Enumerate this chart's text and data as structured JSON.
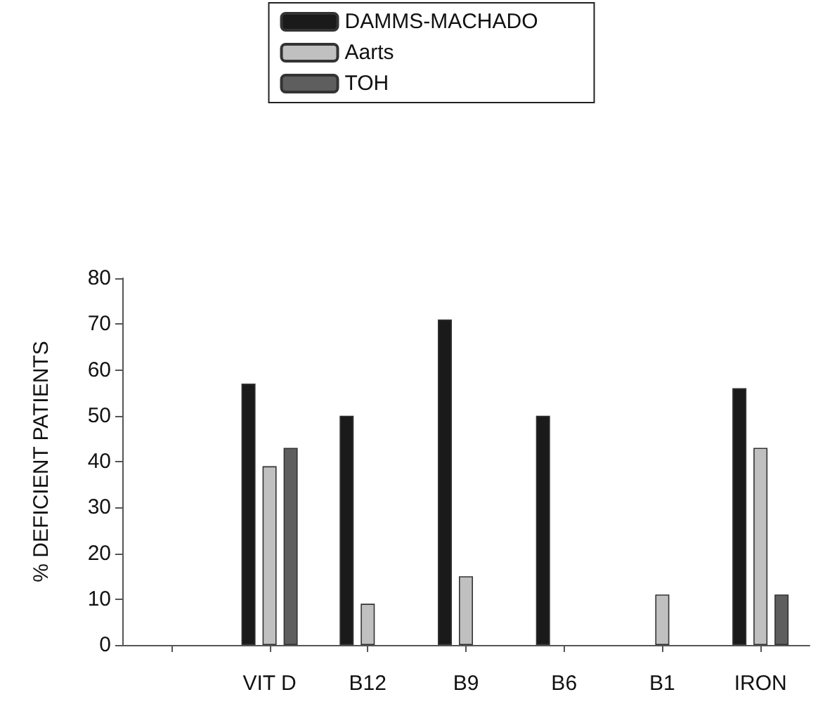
{
  "chart_data": {
    "type": "bar",
    "ylabel": "% DEFICIENT PATIENTS",
    "categories": [
      null,
      "VIT D",
      "B12",
      "B9",
      "B6",
      "B1",
      "IRON"
    ],
    "series": [
      {
        "name": "DAMMS-MACHADO",
        "color": "#1a1a1a",
        "values": [
          null,
          57,
          50,
          71,
          50,
          null,
          56
        ]
      },
      {
        "name": "Aarts",
        "color": "#c0c0c0",
        "values": [
          null,
          39,
          9,
          15,
          null,
          11,
          43
        ]
      },
      {
        "name": "TOH",
        "color": "#5e5e5e",
        "values": [
          null,
          43,
          null,
          null,
          null,
          null,
          11
        ]
      }
    ],
    "ylim": [
      0,
      80
    ],
    "yticks": [
      0,
      10,
      20,
      30,
      40,
      50,
      60,
      70,
      80
    ],
    "grid": false,
    "legend": "top"
  }
}
